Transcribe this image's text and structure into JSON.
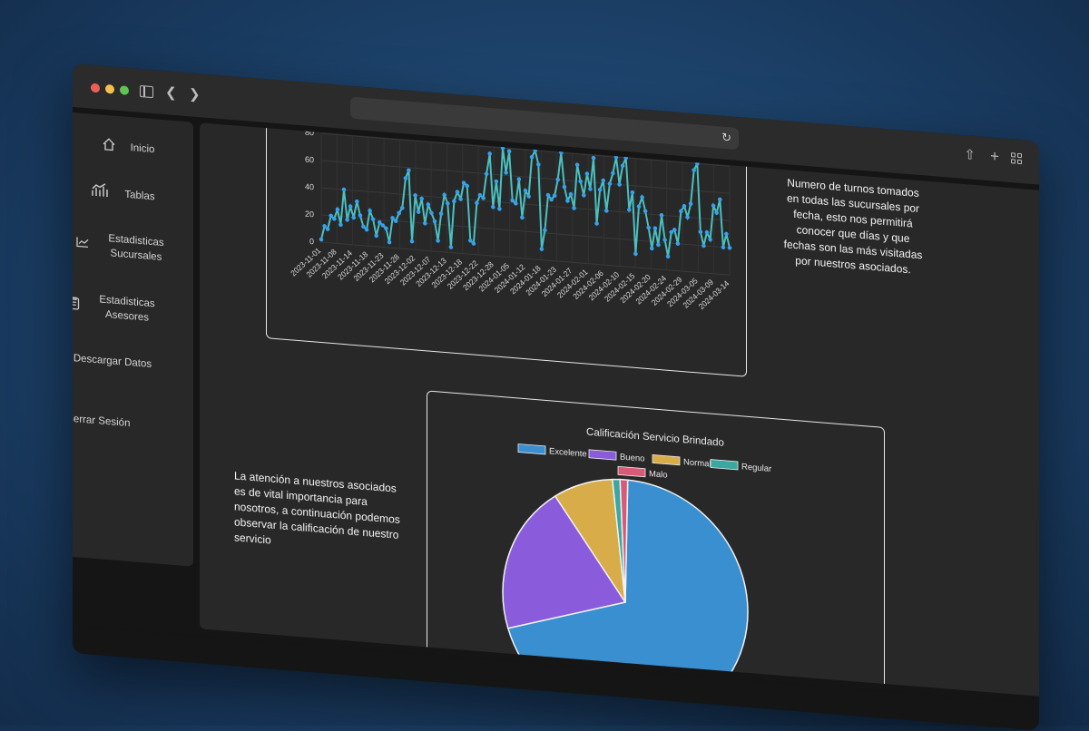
{
  "sidebar": {
    "items": [
      {
        "label": "Inicio",
        "icon": "home-icon"
      },
      {
        "label": "Tablas",
        "icon": "chart-bars-icon"
      },
      {
        "label": "Estadisticas Sucursales",
        "icon": "line-chart-icon"
      },
      {
        "label": "Estadisticas Asesores",
        "icon": "clipboard-icon"
      },
      {
        "label": "Descargar Datos",
        "icon": "download-icon"
      },
      {
        "label": "Cerrar Sesión",
        "icon": "close-box-icon"
      }
    ]
  },
  "description_line": "Numero de turnos tomados en todas las sucursales por fecha, esto nos permitirá conocer que días y que fechas son las más visitadas por nuestros asociados.",
  "description_rating": "La atención a nuestros asociados es de vital importancia para nosotros, a continuación podemos observar la calificación de nuestro servicio",
  "colors": {
    "line": "#4bc0c0",
    "point": "#36a2eb",
    "excelente": "#3a8fd0",
    "bueno": "#8a5cdc",
    "normal": "#d8ac48",
    "regular": "#3aa7a0",
    "malo": "#d85a78"
  },
  "chart_data": [
    {
      "type": "line",
      "title": "",
      "xlabel": "",
      "ylabel": "",
      "ylim": [
        0,
        80
      ],
      "y_ticks": [
        "0",
        "20",
        "40",
        "60",
        "80"
      ],
      "x_tick_labels": [
        "2023-11-01",
        "2023-11-08",
        "2023-11-14",
        "2023-11-18",
        "2023-11-23",
        "2023-11-28",
        "2023-12-02",
        "2023-12-07",
        "2023-12-13",
        "2023-12-18",
        "2023-12-22",
        "2023-12-28",
        "2024-01-05",
        "2024-01-12",
        "2024-01-18",
        "2024-01-23",
        "2024-01-27",
        "2024-02-01",
        "2024-02-06",
        "2024-02-10",
        "2024-02-15",
        "2024-02-20",
        "2024-02-24",
        "2024-02-29",
        "2024-03-05",
        "2024-03-09",
        "2024-03-14"
      ],
      "series": [
        {
          "values": [
            2,
            12,
            10,
            20,
            18,
            25,
            14,
            40,
            18,
            28,
            20,
            32,
            22,
            14,
            12,
            26,
            20,
            8,
            18,
            16,
            14,
            4,
            22,
            20,
            26,
            30,
            52,
            58,
            6,
            40,
            28,
            38,
            20,
            34,
            28,
            22,
            8,
            28,
            42,
            36,
            4,
            38,
            45,
            40,
            52,
            50,
            10,
            8,
            38,
            44,
            42,
            60,
            75,
            36,
            55,
            35,
            80,
            62,
            78,
            42,
            40,
            58,
            30,
            50,
            46,
            75,
            80,
            70,
            8,
            22,
            48,
            45,
            48,
            60,
            80,
            55,
            45,
            50,
            40,
            72,
            60,
            50,
            66,
            55,
            78,
            30,
            55,
            62,
            40,
            60,
            68,
            80,
            60,
            74,
            80,
            42,
            55,
            10,
            45,
            52,
            42,
            30,
            15,
            30,
            18,
            40,
            22,
            10,
            28,
            30,
            20,
            44,
            48,
            40,
            50,
            75,
            80,
            30,
            20,
            30,
            25,
            50,
            45,
            55,
            20,
            30,
            20
          ]
        }
      ]
    },
    {
      "type": "pie",
      "title": "Calificación Servicio Brindado",
      "legend": [
        "Excelente",
        "Bueno",
        "Normal",
        "Regular",
        "Malo"
      ],
      "values": [
        70,
        20,
        8,
        1,
        1
      ]
    }
  ]
}
